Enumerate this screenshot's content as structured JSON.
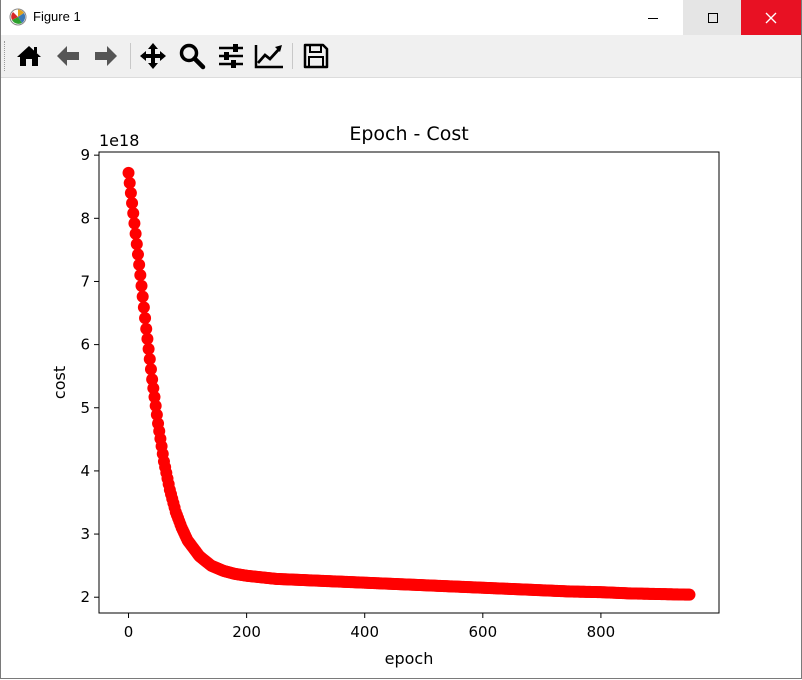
{
  "window": {
    "title": "Figure 1"
  },
  "toolbar": {
    "buttons": [
      "home-icon",
      "back-icon",
      "forward-icon",
      "pan-icon",
      "zoom-icon",
      "configure-subplots-icon",
      "edit-axis-icon",
      "save-icon"
    ]
  },
  "chart_data": {
    "type": "scatter",
    "title": "Epoch - Cost",
    "xlabel": "epoch",
    "ylabel": "cost",
    "y_offset_label": "1e18",
    "xlim": [
      -50,
      1000
    ],
    "ylim": [
      1.75,
      9.05
    ],
    "x_ticks": [
      0,
      200,
      400,
      600,
      800
    ],
    "y_ticks": [
      2,
      3,
      4,
      5,
      6,
      7,
      8,
      9
    ],
    "marker_color": "#ff0000",
    "grid": false,
    "series": [
      {
        "x": [
          0,
          10,
          20,
          30,
          40,
          50,
          60,
          70,
          80,
          90,
          100,
          120,
          140,
          160,
          180,
          200,
          250,
          300,
          350,
          400,
          450,
          500,
          550,
          600,
          650,
          700,
          750,
          800,
          850,
          900,
          950
        ],
        "y": [
          8.72,
          7.92,
          7.1,
          6.25,
          5.45,
          4.75,
          4.15,
          3.7,
          3.35,
          3.1,
          2.9,
          2.65,
          2.5,
          2.42,
          2.37,
          2.34,
          2.29,
          2.27,
          2.25,
          2.23,
          2.21,
          2.19,
          2.17,
          2.15,
          2.13,
          2.11,
          2.09,
          2.08,
          2.06,
          2.05,
          2.04
        ]
      }
    ]
  }
}
